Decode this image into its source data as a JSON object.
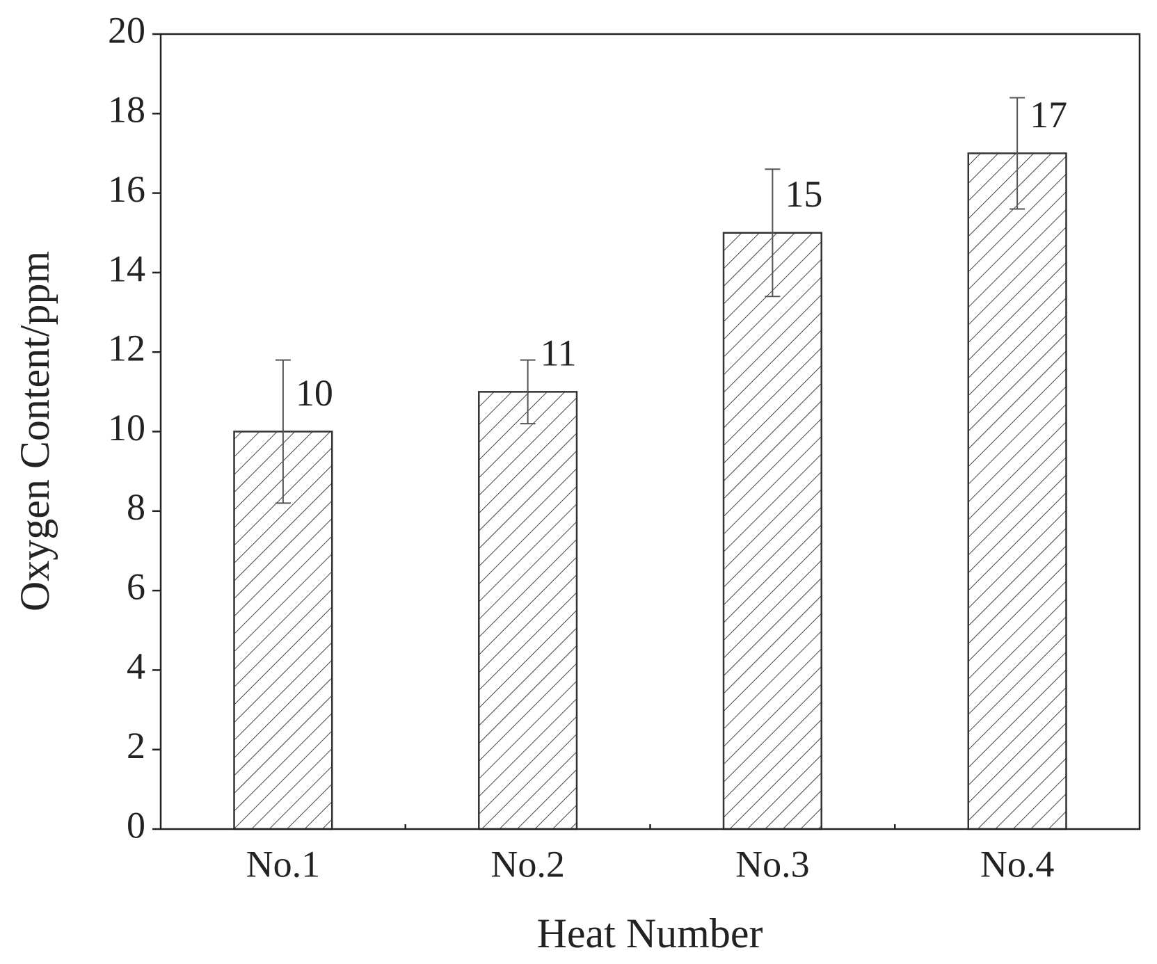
{
  "chart_data": {
    "type": "bar",
    "x_label": "Heat Number",
    "y_label": "Oxygen Content/ppm",
    "categories": [
      "No.1",
      "No.2",
      "No.3",
      "No.4"
    ],
    "values": [
      10,
      11,
      15,
      17
    ],
    "errors": [
      1.8,
      0.8,
      1.6,
      1.4
    ],
    "color": "#333333",
    "ylim": [
      0,
      20
    ],
    "yticks": [
      0,
      2,
      4,
      6,
      8,
      10,
      12,
      14,
      16,
      18,
      20
    ],
    "grid": false
  }
}
